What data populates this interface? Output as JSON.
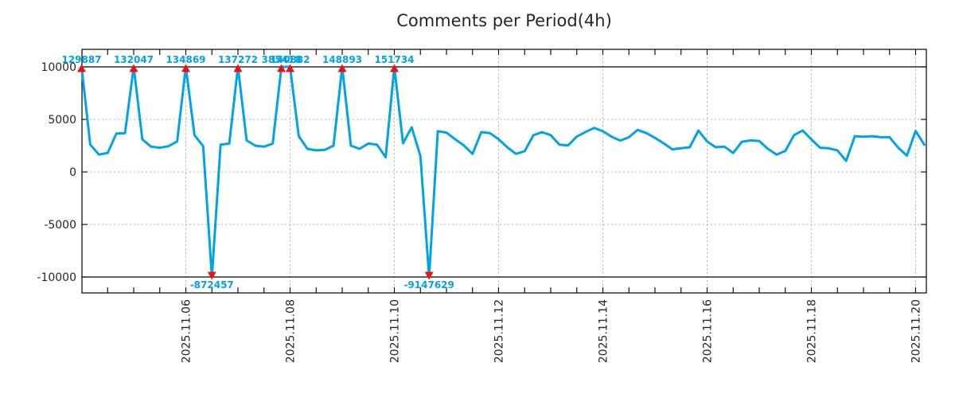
{
  "chart_data": {
    "type": "line",
    "title": "Comments per Period(4h)",
    "period": "4h",
    "x_start": "2025.11.04 00:00",
    "x_step_hours": 4,
    "x_minor_tick_hours": 12,
    "ylim": [
      -11700,
      11700
    ],
    "clip": [
      -10000,
      10000
    ],
    "grid": true,
    "y_ticks": [
      {
        "v": 10000,
        "label": "10000"
      },
      {
        "v": 5000,
        "label": "5000"
      },
      {
        "v": 0,
        "label": "0"
      },
      {
        "v": -5000,
        "label": "-5000"
      },
      {
        "v": -10000,
        "label": "-10000"
      }
    ],
    "x_ticks": [
      {
        "t": 2,
        "label": "2025.11.06"
      },
      {
        "t": 4,
        "label": "2025.11.08"
      },
      {
        "t": 6,
        "label": "2025.11.10"
      },
      {
        "t": 8,
        "label": "2025.11.12"
      },
      {
        "t": 10,
        "label": "2025.11.14"
      },
      {
        "t": 12,
        "label": "2025.11.16"
      },
      {
        "t": 14,
        "label": "2025.11.18"
      },
      {
        "t": 16,
        "label": "2025.11.20"
      }
    ],
    "series": [
      {
        "name": "comments",
        "color": "#00a2e8",
        "values": [
          129887,
          2600,
          1650,
          1800,
          3650,
          3700,
          132047,
          3100,
          2400,
          2300,
          2450,
          2900,
          134869,
          3500,
          2450,
          -872457,
          2600,
          2700,
          137272,
          3000,
          2500,
          2400,
          2700,
          385418,
          140882,
          3400,
          2200,
          2050,
          2100,
          2500,
          148893,
          2500,
          2200,
          2700,
          2600,
          1400,
          151734,
          2730,
          4240,
          1500,
          -9147629,
          3870,
          3740,
          3110,
          2520,
          1720,
          3790,
          3690,
          3110,
          2350,
          1720,
          1970,
          3490,
          3790,
          3500,
          2600,
          2520,
          3360,
          3800,
          4190,
          3870,
          3360,
          2980,
          3300,
          4000,
          3700,
          3240,
          2730,
          2150,
          2250,
          2350,
          3940,
          2900,
          2350,
          2400,
          1800,
          2870,
          3000,
          2950,
          2200,
          1650,
          2000,
          3500,
          3950,
          3100,
          2300,
          2250,
          2050,
          1050,
          3400,
          3350,
          3400,
          3300,
          3300,
          2300,
          1550,
          3900,
          2600
        ]
      }
    ],
    "annotation_color": "#00a2e8",
    "marker_color": "#ee1111",
    "axis_color": "#000000",
    "grid_color": "#b3b3b3",
    "tick_label_color": "#262626"
  }
}
